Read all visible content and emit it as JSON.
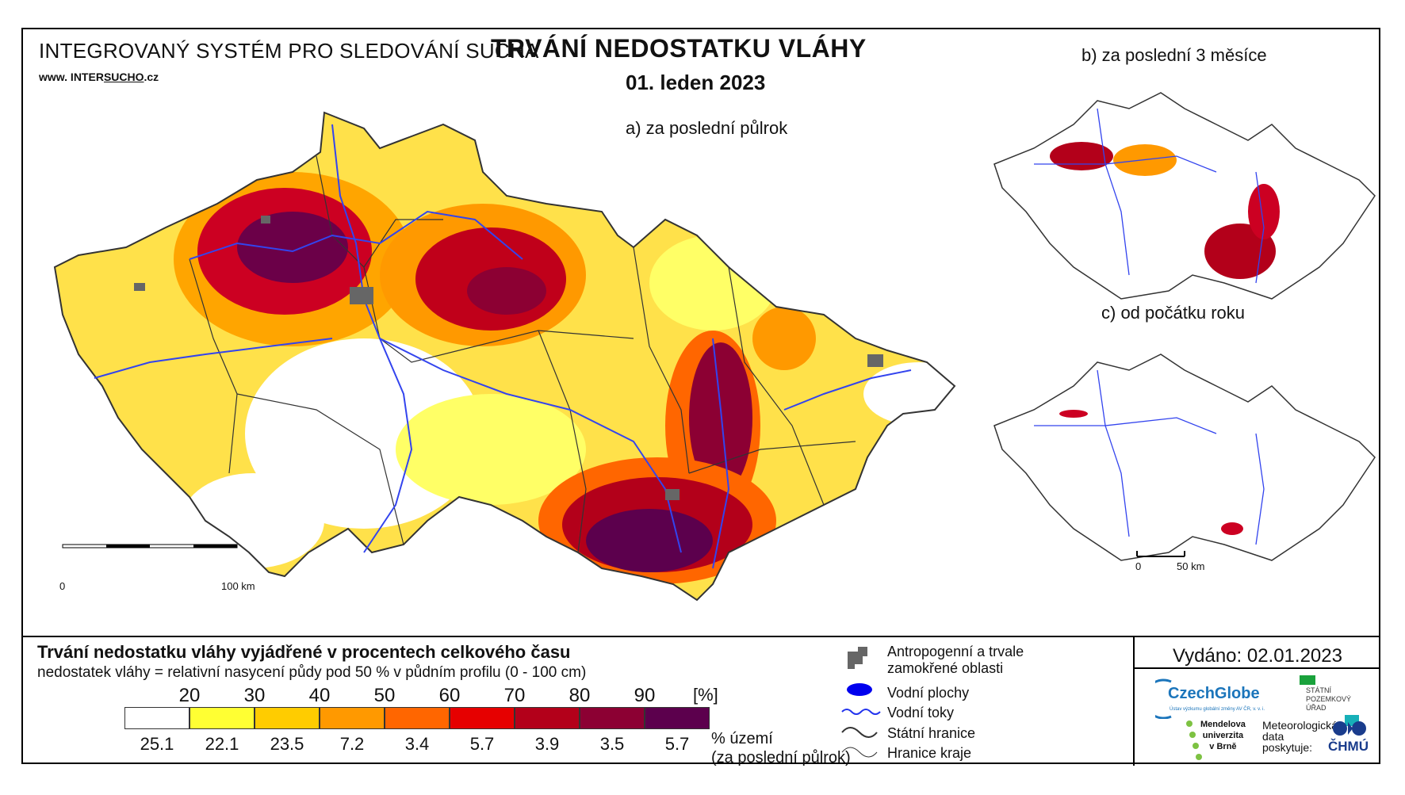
{
  "header": {
    "system_title": "INTEGROVANÝ SYSTÉM PRO SLEDOVÁNÍ SUCHA",
    "url_prefix": "www. INTER",
    "url_brand": "SUCHO",
    "url_suffix": ".cz",
    "main_title": "TRVÁNÍ NEDOSTATKU VLÁHY",
    "date": "01. leden 2023"
  },
  "maps": {
    "a_label": "a) za poslední půlrok",
    "b_label": "b) za poslední 3 měsíce",
    "c_label": "c) od počátku roku",
    "scale_a_zero": "0",
    "scale_a_end": "100 km",
    "scale_c_zero": "0",
    "scale_c_end": "50 km"
  },
  "legend": {
    "title": "Trvání nedostatku vláhy vyjádřené v procentech celkového času",
    "subtitle": "nedostatek vláhy = relativní nasycení půdy pod 50 % v půdním profilu (0 - 100 cm)",
    "unit": "[%]",
    "thresholds": [
      "20",
      "30",
      "40",
      "50",
      "60",
      "70",
      "80",
      "90"
    ],
    "colors": [
      "#ffffff",
      "#ffff33",
      "#ffcc00",
      "#ff9900",
      "#ff6600",
      "#e60000",
      "#b3001a",
      "#8c0033",
      "#5c004d"
    ],
    "shares": [
      "25.1",
      "22.1",
      "23.5",
      "7.2",
      "3.4",
      "5.7",
      "3.9",
      "3.5",
      "5.7"
    ],
    "share_label_1": "% území",
    "share_label_2": "(za poslední půlrok)"
  },
  "symbols": {
    "anthropogenic_1": "Antropogenní a trvale",
    "anthropogenic_2": "zamokřené oblasti",
    "water_bodies": "Vodní plochy",
    "rivers": "Vodní toky",
    "state_border": "Státní hranice",
    "region_border": "Hranice kraje"
  },
  "footer": {
    "issued": "Vydáno: 02.01.2023",
    "czechglobe": "CzechGlobe",
    "czechglobe_sub": "Ústav výzkumu globální změny AV ČR, v. v. i.",
    "spu_1": "STÁTNÍ",
    "spu_2": "POZEMKOVÝ",
    "spu_3": "ÚŘAD",
    "mendel_1": "Mendelova",
    "mendel_2": "univerzita",
    "mendel_3": "v Brně",
    "meteo_1": "Meteorologická",
    "meteo_2": "data",
    "meteo_3": "poskytuje:",
    "chmu": "ČHMÚ"
  }
}
